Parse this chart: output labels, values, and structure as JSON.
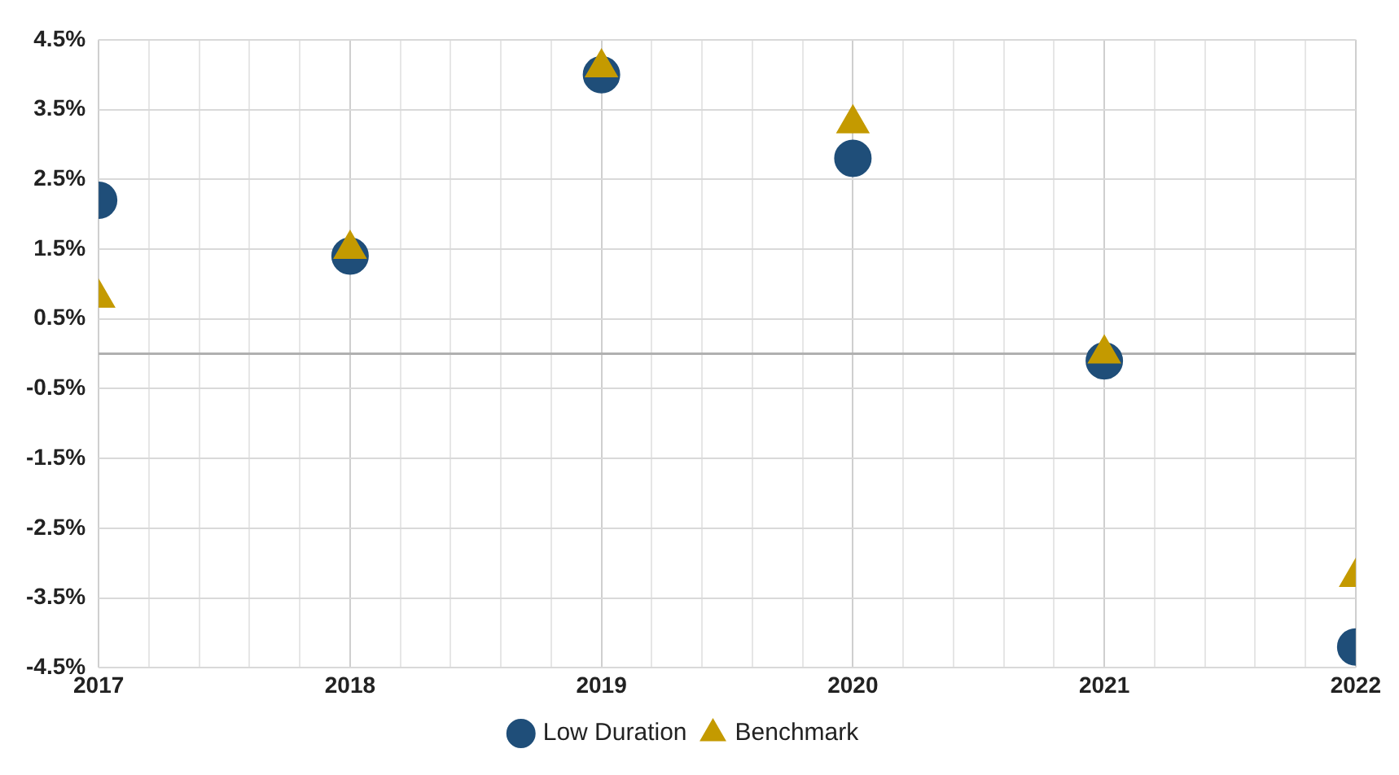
{
  "chart_data": {
    "type": "scatter",
    "x": [
      2017,
      2018,
      2019,
      2020,
      2021,
      2022
    ],
    "series": [
      {
        "name": "Low Duration",
        "color": "#1f4e79",
        "marker": "circle",
        "values": [
          2.2,
          1.4,
          4.0,
          2.8,
          -0.1,
          -4.2
        ]
      },
      {
        "name": "Benchmark",
        "color": "#c49a00",
        "marker": "triangle",
        "values": [
          0.8,
          1.5,
          4.1,
          3.3,
          0.0,
          -3.2
        ]
      }
    ],
    "xlim": [
      2017,
      2022
    ],
    "xticks": [
      2017,
      {
        "value": 2017.2,
        "label": null
      },
      {
        "value": 2017.4,
        "label": null
      },
      {
        "value": 2017.6,
        "label": null
      },
      {
        "value": 2017.8,
        "label": null
      },
      2018,
      {
        "value": 2018.2,
        "label": null
      },
      {
        "value": 2018.4,
        "label": null
      },
      {
        "value": 2018.6,
        "label": null
      },
      {
        "value": 2018.8,
        "label": null
      },
      2019,
      {
        "value": 2019.2,
        "label": null
      },
      {
        "value": 2019.4,
        "label": null
      },
      {
        "value": 2019.6,
        "label": null
      },
      {
        "value": 2019.8,
        "label": null
      },
      2020,
      {
        "value": 2020.2,
        "label": null
      },
      {
        "value": 2020.4,
        "label": null
      },
      {
        "value": 2020.6,
        "label": null
      },
      {
        "value": 2020.8,
        "label": null
      },
      2021,
      {
        "value": 2021.2,
        "label": null
      },
      {
        "value": 2021.4,
        "label": null
      },
      {
        "value": 2021.6,
        "label": null
      },
      {
        "value": 2021.8,
        "label": null
      },
      2022
    ],
    "ylim": [
      -4.5,
      4.5
    ],
    "yticks": [
      {
        "value": -4.5,
        "label": "-4.5%"
      },
      {
        "value": -3.5,
        "label": "-3.5%"
      },
      {
        "value": -2.5,
        "label": "-2.5%"
      },
      {
        "value": -1.5,
        "label": "-1.5%"
      },
      {
        "value": -0.5,
        "label": "-0.5%"
      },
      {
        "value": 0.5,
        "label": "0.5%"
      },
      {
        "value": 1.5,
        "label": "1.5%"
      },
      {
        "value": 2.5,
        "label": "2.5%"
      },
      {
        "value": 3.5,
        "label": "3.5%"
      },
      {
        "value": 4.5,
        "label": "4.5%"
      }
    ],
    "grid": true,
    "legend": "bottom"
  }
}
